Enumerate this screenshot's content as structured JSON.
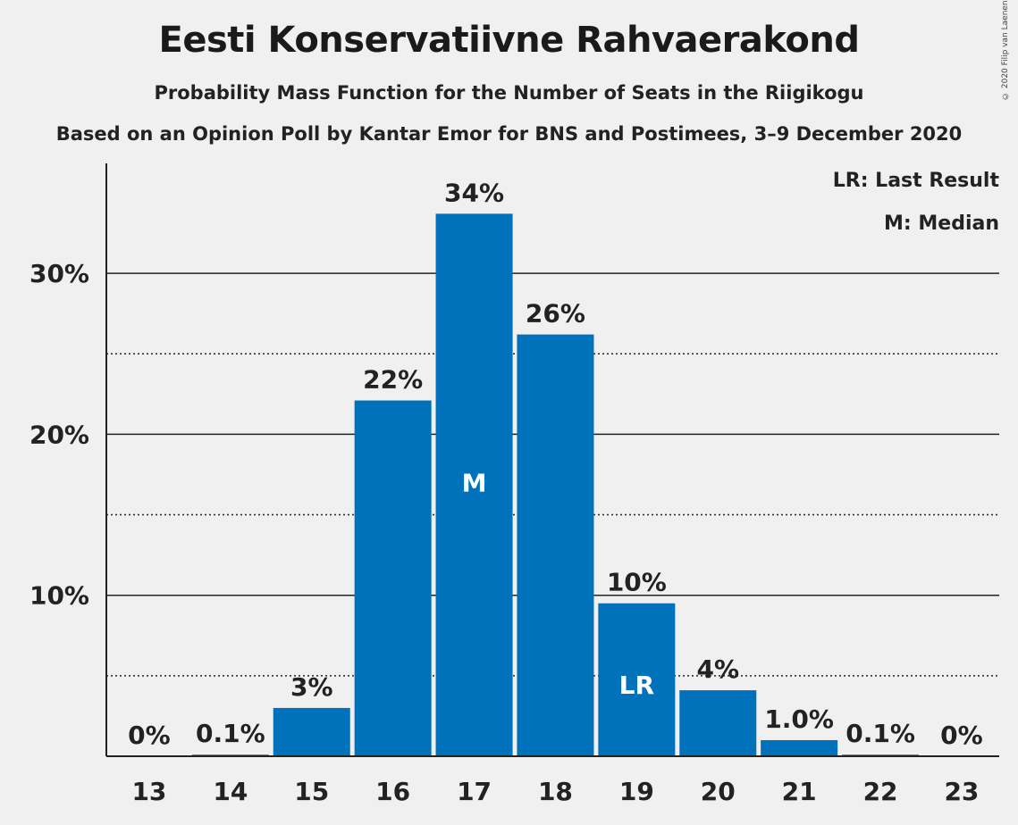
{
  "title": "Eesti Konservatiivne Rahvaerakond",
  "subtitle": "Probability Mass Function for the Number of Seats in the Riigikogu",
  "subtitle2": "Based on an Opinion Poll by Kantar Emor for BNS and Postimees, 3–9 December 2020",
  "copyright": "© 2020 Filip van Laenen",
  "legend": {
    "last_result": "LR: Last Result",
    "median": "M: Median"
  },
  "colors": {
    "bar": "#0072bb",
    "background": "#f0f0f0"
  },
  "chart_data": {
    "type": "bar",
    "categories": [
      "13",
      "14",
      "15",
      "16",
      "17",
      "18",
      "19",
      "20",
      "21",
      "22",
      "23"
    ],
    "values": [
      0,
      0.1,
      3,
      22.1,
      33.7,
      26.2,
      9.5,
      4.1,
      1.0,
      0.1,
      0
    ],
    "data_labels": [
      "0%",
      "0.1%",
      "3%",
      "22%",
      "34%",
      "26%",
      "10%",
      "4%",
      "1.0%",
      "0.1%",
      "0%"
    ],
    "bar_annotations": [
      {
        "category": "17",
        "text": "M"
      },
      {
        "category": "19",
        "text": "LR"
      }
    ],
    "y_ticks": [
      10,
      20,
      30
    ],
    "y_tick_labels": [
      "10%",
      "20%",
      "30%"
    ],
    "minor_gridlines": [
      5,
      15,
      25
    ],
    "ylim": [
      0,
      35
    ],
    "grid": true,
    "legend_position": "top-right"
  }
}
